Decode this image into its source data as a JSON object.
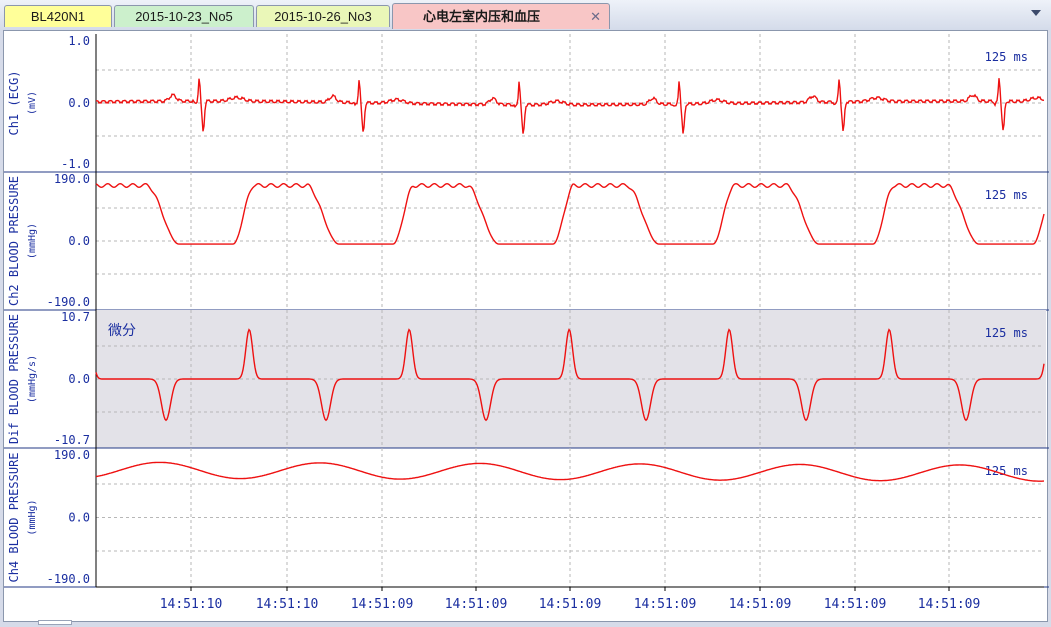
{
  "tabs": [
    {
      "label": "BL420N1",
      "color": "#ffff99",
      "active": false
    },
    {
      "label": "2015-10-23_No5",
      "color": "#ccf0cc",
      "active": false
    },
    {
      "label": "2015-10-26_No3",
      "color": "#eaf7b8",
      "active": false
    },
    {
      "label": "心电左室内压和血压",
      "color": "#f8c6c6",
      "active": true,
      "closable": true
    }
  ],
  "colors": {
    "trace": "#ee1111",
    "label": "#1a2ea0",
    "axis": "#000000",
    "grid": "#b7b7b7",
    "shaded_panel": "#e3e2e8"
  },
  "channels": [
    {
      "label": "Ch1 (ECG)",
      "unit": "(mV)",
      "ymax": "1.0",
      "ymid": "0.0",
      "ymin": "-1.0",
      "speed": "125 ms",
      "shaded": false,
      "annotation": ""
    },
    {
      "label": "Ch2 BLOOD PRESSURE",
      "unit": "(mmHg)",
      "ymax": "190.0",
      "ymid": "0.0",
      "ymin": "-190.0",
      "speed": "125 ms",
      "shaded": false,
      "annotation": ""
    },
    {
      "label": "Dif BLOOD PRESSURE",
      "unit": "(mmHg/s)",
      "ymax": "10.7",
      "ymid": "0.0",
      "ymin": "-10.7",
      "speed": "125 ms",
      "shaded": true,
      "annotation": "微分"
    },
    {
      "label": "Ch4 BLOOD PRESSURE",
      "unit": "(mmHg)",
      "ymax": "190.0",
      "ymid": "0.0",
      "ymin": "-190.0",
      "speed": "125 ms",
      "shaded": false,
      "annotation": ""
    }
  ],
  "time_labels": [
    "14:51:10",
    "14:51:10",
    "14:51:09",
    "14:51:09",
    "14:51:09",
    "14:51:09",
    "14:51:09",
    "14:51:09",
    "14:51:09"
  ]
}
